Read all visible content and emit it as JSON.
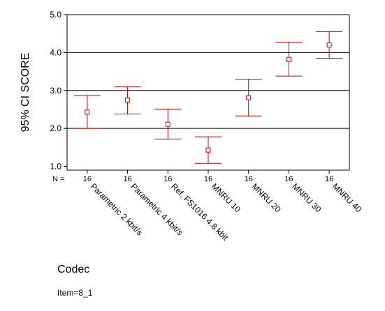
{
  "chart_data": {
    "type": "errorbar",
    "ylabel": "95% CI SCORE",
    "xlabel": "Codec",
    "footnote": "Item=8_1",
    "n_label": "N =",
    "ylim": [
      0.9,
      5.0
    ],
    "yticks": [
      "1.0",
      "2.0",
      "3.0",
      "4.0",
      "5.0"
    ],
    "gridlines_y": [
      2.0,
      3.0,
      4.0
    ],
    "colors": {
      "series": "#cc0000",
      "axis": "#000000",
      "grid": "#000000"
    },
    "categories": [
      "Parametric 2 kbit/s",
      "Parametric 4 kbit/s",
      "Ref. FS1016 4.8 kbit",
      "MNRU 10",
      "MNRU 20",
      "MNRU 30",
      "MNRU 40"
    ],
    "n": [
      "16",
      "16",
      "16",
      "16",
      "16",
      "16",
      "16"
    ],
    "mean": [
      2.43,
      2.75,
      2.11,
      1.43,
      2.81,
      3.82,
      4.2
    ],
    "lower": [
      2.0,
      2.38,
      1.72,
      1.08,
      2.33,
      3.38,
      3.85
    ],
    "upper": [
      2.87,
      3.1,
      2.51,
      1.78,
      3.3,
      4.27,
      4.55
    ]
  }
}
